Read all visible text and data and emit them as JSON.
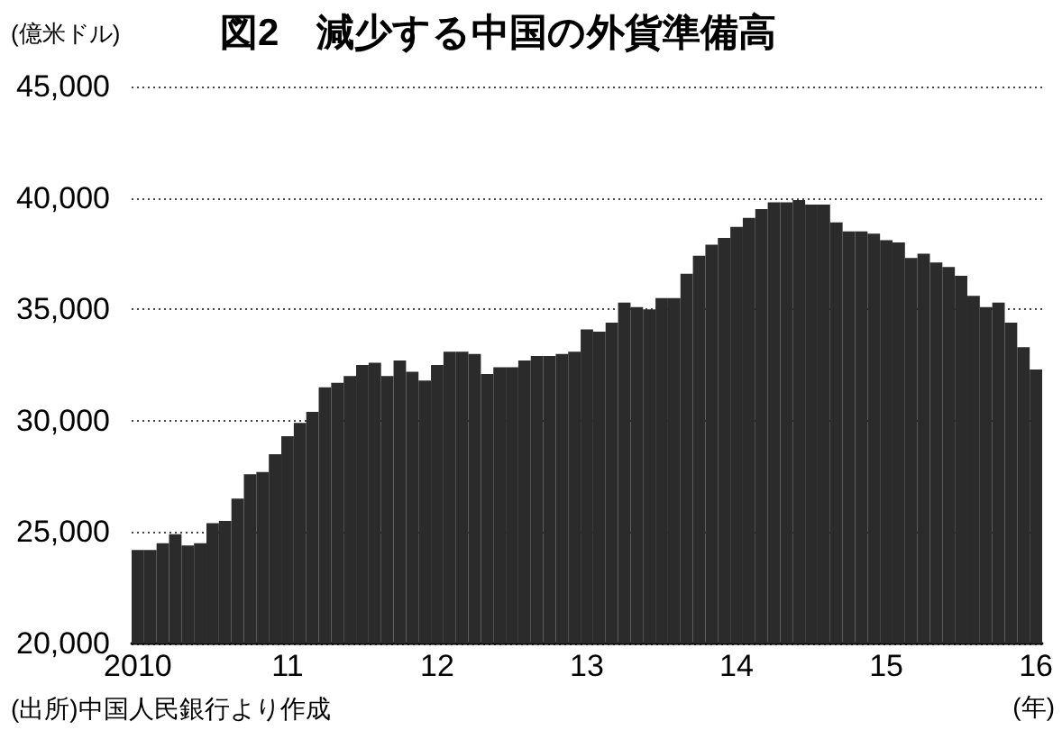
{
  "chart_data": {
    "type": "bar",
    "title": "図2　減少する中国の外貨準備高",
    "ylabel": "(億米ドル)",
    "xlabel": "(年)",
    "annotations": [
      "(出所)中国人民銀行より作成"
    ],
    "categories": [
      "2010",
      null,
      null,
      null,
      null,
      null,
      null,
      null,
      null,
      null,
      null,
      null,
      "11",
      null,
      null,
      null,
      null,
      null,
      null,
      null,
      null,
      null,
      null,
      null,
      "12",
      null,
      null,
      null,
      null,
      null,
      null,
      null,
      null,
      null,
      null,
      null,
      "13",
      null,
      null,
      null,
      null,
      null,
      null,
      null,
      null,
      null,
      null,
      null,
      "14",
      null,
      null,
      null,
      null,
      null,
      null,
      null,
      null,
      null,
      null,
      null,
      "15",
      null,
      null,
      null,
      null,
      null,
      null,
      null,
      null,
      null,
      null,
      null,
      "16"
    ],
    "values": [
      24200,
      24200,
      24500,
      24900,
      24400,
      24500,
      25400,
      25500,
      26500,
      27600,
      27700,
      28500,
      29300,
      29900,
      30400,
      31500,
      31700,
      32000,
      32500,
      32600,
      32000,
      32700,
      32200,
      31800,
      32500,
      33100,
      33100,
      33000,
      32100,
      32400,
      32400,
      32700,
      32900,
      32900,
      33000,
      33100,
      34100,
      34000,
      34400,
      35300,
      35100,
      35000,
      35500,
      35500,
      36600,
      37400,
      37900,
      38200,
      38700,
      39100,
      39500,
      39800,
      39800,
      39900,
      39700,
      39700,
      38900,
      38500,
      38500,
      38400,
      38100,
      38000,
      37300,
      37500,
      37100,
      36900,
      36500,
      35600,
      35100,
      35300,
      34400,
      33300,
      32300
    ],
    "color": "#2b2b2b",
    "ylim": [
      20000,
      45000
    ],
    "yticks": [
      {
        "value": 20000,
        "label": "20,000"
      },
      {
        "value": 25000,
        "label": "25,000"
      },
      {
        "value": 30000,
        "label": "30,000"
      },
      {
        "value": 35000,
        "label": "35,000"
      },
      {
        "value": 40000,
        "label": "40,000"
      },
      {
        "value": 45000,
        "label": "45,000"
      }
    ],
    "grid": "y"
  }
}
